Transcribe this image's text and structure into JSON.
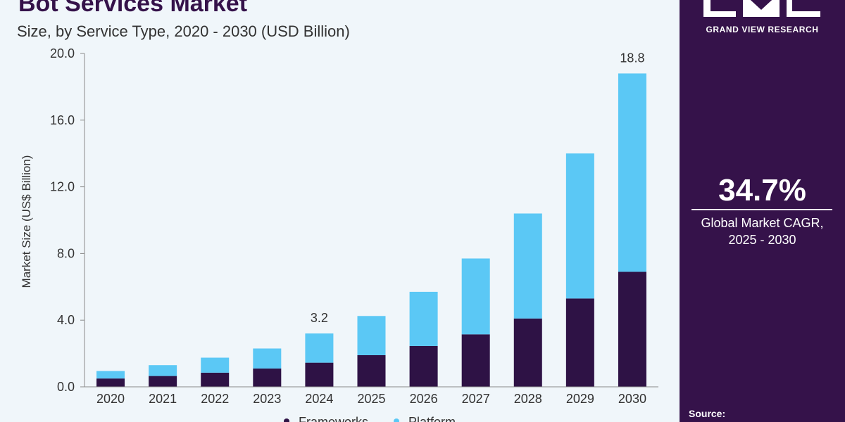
{
  "header": {
    "title": "Bot Services Market",
    "subtitle": "Size, by Service Type, 2020 - 2030 (USD Billion)"
  },
  "side_panel": {
    "brand": "GRAND VIEW RESEARCH",
    "logo_icon": "gvr-logo-icon",
    "cagr_value": "34.7%",
    "cagr_label_line1": "Global Market CAGR,",
    "cagr_label_line2": "2025 - 2030",
    "source_label": "Source:",
    "background_color": "#35124a"
  },
  "chart_data": {
    "type": "bar",
    "stacked": true,
    "categories": [
      "2020",
      "2021",
      "2022",
      "2023",
      "2024",
      "2025",
      "2026",
      "2027",
      "2028",
      "2029",
      "2030"
    ],
    "series": [
      {
        "name": "Frameworks",
        "color": "#2e1245",
        "values": [
          0.5,
          0.65,
          0.85,
          1.1,
          1.45,
          1.9,
          2.45,
          3.15,
          4.1,
          5.3,
          6.9
        ]
      },
      {
        "name": "Platform",
        "color": "#5bc8f5",
        "values": [
          0.45,
          0.65,
          0.9,
          1.2,
          1.75,
          2.35,
          3.25,
          4.55,
          6.3,
          8.7,
          11.9
        ]
      }
    ],
    "data_labels": [
      {
        "category": "2024",
        "text": "3.2"
      },
      {
        "category": "2030",
        "text": "18.8"
      }
    ],
    "title": "Bot Services Market",
    "xlabel": "",
    "ylabel": "Market Size (US$ Billion)",
    "ylim": [
      0,
      20
    ],
    "yticks": [
      "0.0",
      "4.0",
      "8.0",
      "12.0",
      "16.0",
      "20.0"
    ],
    "grid": false,
    "legend_position": "bottom"
  }
}
